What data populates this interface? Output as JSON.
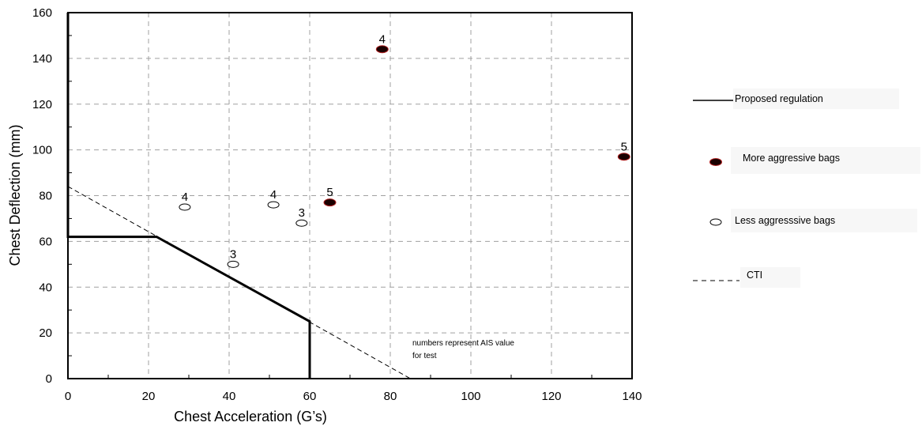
{
  "chart_data": {
    "type": "scatter",
    "title": "",
    "xlabel": "Chest Acceleration  (G’s)",
    "ylabel": "Chest Deflection (mm)",
    "xlim": [
      0,
      140
    ],
    "ylim": [
      0,
      160
    ],
    "x_ticks": [
      "0",
      "20",
      "40",
      "60",
      "80",
      "100",
      "120",
      "140"
    ],
    "y_ticks": [
      "0",
      "20",
      "40",
      "60",
      "80",
      "100",
      "120",
      "140",
      "160"
    ],
    "grid": true,
    "legend_position": "right",
    "series": [
      {
        "name": "More aggressive bags",
        "marker": "filled-ellipse",
        "color": "#1a0000",
        "edge_color": "#b22222",
        "points": [
          {
            "x": 78,
            "y": 144,
            "label": "4"
          },
          {
            "x": 65,
            "y": 77,
            "label": "5"
          },
          {
            "x": 138,
            "y": 97,
            "label": "5"
          }
        ]
      },
      {
        "name": "Less aggresssive bags",
        "marker": "open-ellipse",
        "color": "#000000",
        "points": [
          {
            "x": 29,
            "y": 75,
            "label": "4"
          },
          {
            "x": 51,
            "y": 76,
            "label": "4"
          },
          {
            "x": 58,
            "y": 68,
            "label": "3"
          },
          {
            "x": 41,
            "y": 50,
            "label": "3"
          }
        ]
      }
    ],
    "lines": [
      {
        "name": "Proposed regulation",
        "style": "solid",
        "points": [
          [
            0,
            160
          ],
          [
            0,
            62
          ],
          [
            22,
            62
          ],
          [
            60,
            25
          ],
          [
            60,
            0
          ]
        ]
      },
      {
        "name": "CTI",
        "style": "dashed",
        "points": [
          [
            0,
            84
          ],
          [
            85,
            0
          ]
        ]
      }
    ],
    "annotation": [
      "numbers represent AIS value",
      "for test"
    ]
  }
}
